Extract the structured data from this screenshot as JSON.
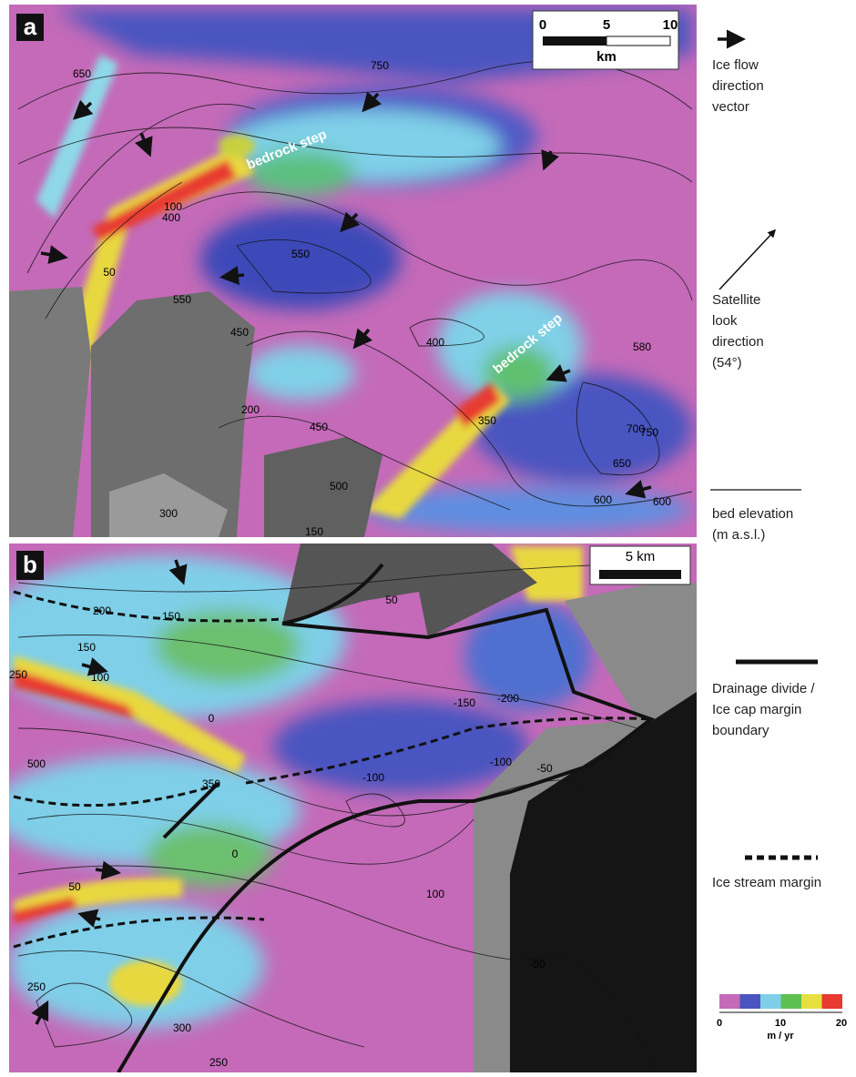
{
  "panels": [
    {
      "label": "a",
      "scale_bar": {
        "ticks": [
          "0",
          "5",
          "10"
        ],
        "unit": "km"
      },
      "annotations": [
        "bedrock step",
        "bedrock step"
      ],
      "contour_labels": [
        "650",
        "750",
        "550",
        "400",
        "450",
        "450",
        "550",
        "400",
        "200",
        "350",
        "500",
        "150",
        "300",
        "580",
        "700",
        "750",
        "650",
        "600",
        "600",
        "100",
        "50"
      ]
    },
    {
      "label": "b",
      "scale_bar": {
        "label": "5 km"
      },
      "contour_labels": [
        "200",
        "150",
        "50",
        "150",
        "100",
        "250",
        "500",
        "350",
        "0",
        "-150",
        "-200",
        "-100",
        "-100",
        "-50",
        "0",
        "50",
        "100",
        "250",
        "-50",
        "300",
        "250"
      ]
    }
  ],
  "legend": [
    {
      "lines": [
        "Ice flow",
        "direction",
        "vector"
      ]
    },
    {
      "lines": [
        "Satellite",
        "look",
        "direction",
        "(54°)"
      ]
    },
    {
      "lines": [
        "bed elevation",
        "(m a.s.l.)"
      ]
    },
    {
      "lines": [
        "Drainage divide /",
        "Ice cap margin",
        "boundary"
      ]
    },
    {
      "lines": [
        "Ice stream margin"
      ]
    }
  ],
  "colorbar": {
    "ticks": [
      "0",
      "10",
      "20"
    ],
    "unit": "m / yr"
  }
}
